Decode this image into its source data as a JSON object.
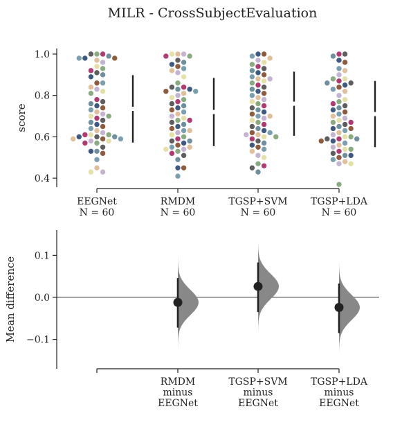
{
  "chart_data": {
    "type": "estimation-plot",
    "title": "MILR - CrossSubjectEvaluation",
    "panels": [
      {
        "type": "swarm",
        "ylabel": "score",
        "ylim": [
          0.35,
          1.02
        ],
        "yticks": [
          0.4,
          0.6,
          0.8,
          1.0
        ],
        "ytick_labels": [
          "0.4",
          "0.6",
          "0.8",
          "1.0"
        ],
        "groups": [
          {
            "name": "EEGNet",
            "n_label": "N = 60",
            "scores": [
              1.0,
              1.0,
              1.0,
              0.99,
              0.98,
              0.98,
              0.98,
              0.97,
              0.96,
              0.94,
              0.93,
              0.92,
              0.91,
              0.9,
              0.89,
              0.86,
              0.86,
              0.84,
              0.83,
              0.82,
              0.81,
              0.78,
              0.77,
              0.76,
              0.75,
              0.74,
              0.73,
              0.72,
              0.71,
              0.7,
              0.7,
              0.69,
              0.68,
              0.67,
              0.66,
              0.65,
              0.64,
              0.63,
              0.62,
              0.61,
              0.61,
              0.61,
              0.6,
              0.6,
              0.6,
              0.59,
              0.59,
              0.59,
              0.58,
              0.58,
              0.57,
              0.57,
              0.55,
              0.53,
              0.53,
              0.52,
              0.49,
              0.45,
              0.43,
              0.43
            ],
            "mean": 0.735,
            "sd": 0.163
          },
          {
            "name": "RMDM",
            "n_label": "N = 60",
            "scores": [
              1.0,
              1.0,
              1.0,
              0.99,
              0.99,
              0.97,
              0.96,
              0.95,
              0.94,
              0.93,
              0.92,
              0.91,
              0.89,
              0.86,
              0.84,
              0.84,
              0.83,
              0.83,
              0.82,
              0.82,
              0.81,
              0.8,
              0.79,
              0.78,
              0.77,
              0.76,
              0.75,
              0.74,
              0.73,
              0.72,
              0.71,
              0.7,
              0.69,
              0.68,
              0.68,
              0.67,
              0.66,
              0.65,
              0.64,
              0.63,
              0.63,
              0.62,
              0.61,
              0.6,
              0.59,
              0.58,
              0.58,
              0.57,
              0.56,
              0.55,
              0.55,
              0.54,
              0.54,
              0.53,
              0.52,
              0.51,
              0.49,
              0.45,
              0.45,
              0.41
            ],
            "mean": 0.72,
            "sd": 0.165
          },
          {
            "name": "TGSP+SVM",
            "n_label": "N = 60",
            "scores": [
              1.0,
              1.0,
              0.99,
              0.98,
              0.97,
              0.96,
              0.95,
              0.94,
              0.93,
              0.92,
              0.91,
              0.9,
              0.89,
              0.88,
              0.88,
              0.87,
              0.86,
              0.85,
              0.84,
              0.83,
              0.82,
              0.81,
              0.8,
              0.79,
              0.78,
              0.77,
              0.76,
              0.75,
              0.74,
              0.73,
              0.72,
              0.71,
              0.7,
              0.7,
              0.69,
              0.68,
              0.67,
              0.66,
              0.65,
              0.64,
              0.63,
              0.62,
              0.62,
              0.61,
              0.61,
              0.6,
              0.6,
              0.59,
              0.58,
              0.57,
              0.56,
              0.55,
              0.54,
              0.53,
              0.51,
              0.5,
              0.47,
              0.46,
              0.45,
              0.43
            ],
            "mean": 0.76,
            "sd": 0.155
          },
          {
            "name": "TGSP+LDA",
            "n_label": "N = 60",
            "scores": [
              1.0,
              1.0,
              0.99,
              0.97,
              0.96,
              0.93,
              0.92,
              0.9,
              0.88,
              0.88,
              0.87,
              0.86,
              0.86,
              0.85,
              0.84,
              0.83,
              0.82,
              0.8,
              0.78,
              0.77,
              0.76,
              0.75,
              0.74,
              0.73,
              0.72,
              0.71,
              0.7,
              0.69,
              0.68,
              0.67,
              0.67,
              0.66,
              0.65,
              0.64,
              0.64,
              0.63,
              0.62,
              0.61,
              0.6,
              0.6,
              0.59,
              0.59,
              0.59,
              0.58,
              0.58,
              0.57,
              0.56,
              0.55,
              0.54,
              0.54,
              0.53,
              0.52,
              0.51,
              0.51,
              0.5,
              0.49,
              0.48,
              0.47,
              0.47,
              0.37
            ],
            "mean": 0.71,
            "sd": 0.16
          }
        ]
      },
      {
        "type": "mean-difference",
        "ylabel": "Mean difference",
        "ylim": [
          -0.17,
          0.16
        ],
        "yticks": [
          -0.1,
          0.0,
          0.1
        ],
        "ytick_labels": [
          "−0.1",
          "0.0",
          "0.1"
        ],
        "reference_line": 0.0,
        "ref_category": "EEGNet",
        "contrasts": [
          {
            "line1": "RMDM",
            "line2": "minus",
            "line3": "EEGNet",
            "mean": -0.012,
            "ci": [
              -0.072,
              0.046
            ],
            "dist_range": [
              -0.125,
              0.105
            ],
            "dist_sd": 0.03
          },
          {
            "line1": "TGSP+SVM",
            "line2": "minus",
            "line3": "EEGNet",
            "mean": 0.026,
            "ci": [
              -0.035,
              0.083
            ],
            "dist_range": [
              -0.085,
              0.13
            ],
            "dist_sd": 0.03
          },
          {
            "line1": "TGSP+LDA",
            "line2": "minus",
            "line3": "EEGNet",
            "mean": -0.024,
            "ci": [
              -0.085,
              0.033
            ],
            "dist_range": [
              -0.13,
              0.09
            ],
            "dist_sd": 0.03
          }
        ]
      }
    ],
    "colors": {
      "swarm_palette": [
        "#8aab80",
        "#e0bf9a",
        "#3f5a82",
        "#b23a73",
        "#c5b3d2",
        "#8f5a3d",
        "#5e5e5e",
        "#e4e0a8",
        "#7a9fb0",
        "#6d8f9e"
      ],
      "bars": "#222222",
      "distribution": "#888888",
      "mean_dot": "#222222"
    }
  }
}
